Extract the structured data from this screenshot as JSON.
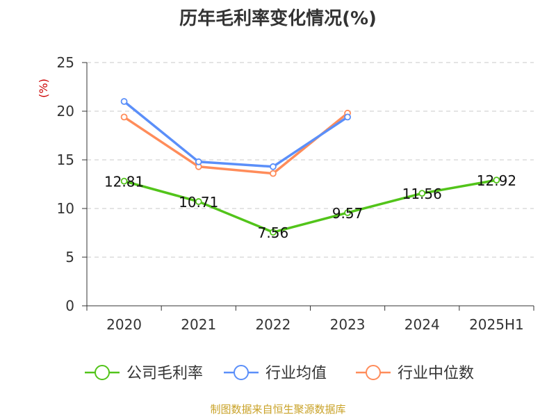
{
  "chart_data": {
    "type": "line",
    "title": "历年毛利率变化情况(%)",
    "ylabel": "(%)",
    "categories": [
      "2020",
      "2021",
      "2022",
      "2023",
      "2024",
      "2025H1"
    ],
    "ylim": [
      0,
      25
    ],
    "yticks": [
      0,
      5,
      10,
      15,
      20,
      25
    ],
    "grid": true,
    "legend_position": "bottom",
    "series": [
      {
        "name": "公司毛利率",
        "color": "#52c41a",
        "values": [
          12.81,
          10.71,
          7.56,
          9.57,
          11.56,
          12.92
        ],
        "labels": [
          "12.81",
          "10.71",
          "7.56",
          "9.57",
          "11.56",
          "12.92"
        ]
      },
      {
        "name": "行业均值",
        "color": "#5b8ff9",
        "values": [
          21.0,
          14.8,
          14.3,
          19.4,
          null,
          null
        ]
      },
      {
        "name": "行业中位数",
        "color": "#ff8c5a",
        "values": [
          19.4,
          14.3,
          13.6,
          19.8,
          null,
          null
        ]
      }
    ]
  },
  "source": "制图数据来自恒生聚源数据库"
}
